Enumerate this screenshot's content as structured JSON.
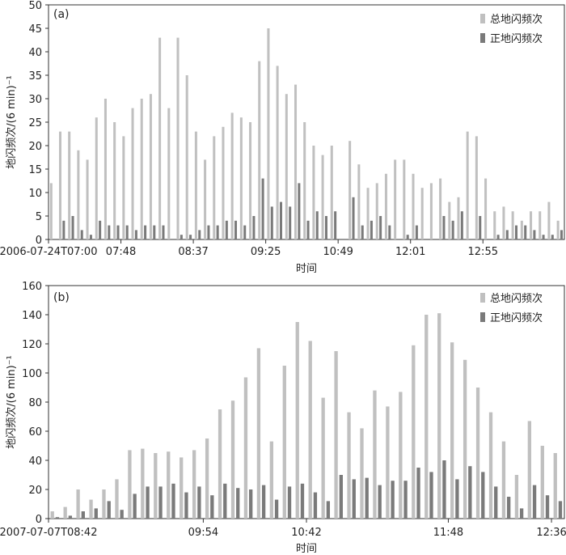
{
  "chart_data": [
    {
      "type": "bar",
      "panel": "(a)",
      "xlabel": "时间",
      "ylabel": "地闪频次/(6 min)⁻¹",
      "ylim": [
        0,
        50
      ],
      "yticks": [
        0,
        5,
        10,
        15,
        20,
        25,
        30,
        35,
        40,
        45,
        50
      ],
      "xtick_labels": [
        {
          "index": 0,
          "label": "2006-07-24T07:00"
        },
        {
          "index": 8,
          "label": "07:48"
        },
        {
          "index": 16,
          "label": "08:37"
        },
        {
          "index": 24,
          "label": "09:25"
        },
        {
          "index": 32,
          "label": "10:49"
        },
        {
          "index": 40,
          "label": "12:01"
        },
        {
          "index": 48,
          "label": "12:55"
        }
      ],
      "legend": "top-right",
      "series": [
        {
          "name": "总地闪频次",
          "color": "#c0c0c0",
          "values": [
            12,
            23,
            23,
            19,
            17,
            26,
            30,
            25,
            22,
            28,
            30,
            31,
            43,
            28,
            43,
            35,
            23,
            17,
            22,
            24,
            27,
            26,
            25,
            38,
            45,
            37,
            31,
            33,
            25,
            20,
            18,
            20,
            null,
            21,
            16,
            11,
            12,
            14,
            17,
            17,
            14,
            11,
            12,
            13,
            8,
            9,
            23,
            22,
            13,
            6,
            7,
            6,
            4,
            6,
            6,
            8,
            4
          ]
        },
        {
          "name": "正地闪频次",
          "color": "#7a7a7a",
          "values": [
            0,
            4,
            5,
            2,
            1,
            4,
            3,
            3,
            3,
            2,
            3,
            3,
            3,
            0,
            1,
            1,
            2,
            3,
            3,
            4,
            4,
            3,
            5,
            13,
            7,
            8,
            7,
            12,
            4,
            6,
            5,
            6,
            null,
            9,
            3,
            4,
            5,
            3,
            0,
            1,
            3,
            0,
            0,
            5,
            4,
            6,
            0,
            5,
            0,
            1,
            2,
            3,
            3,
            2,
            1,
            1,
            2
          ]
        }
      ]
    },
    {
      "type": "bar",
      "panel": "(b)",
      "xlabel": "时间",
      "ylabel": "地闪频次/(6 min)⁻¹",
      "ylim": [
        0,
        160
      ],
      "yticks": [
        0,
        20,
        40,
        60,
        80,
        100,
        120,
        140,
        160
      ],
      "xtick_labels": [
        {
          "index": 0,
          "label": "2007-07-07T08:42"
        },
        {
          "index": 12,
          "label": "09:54"
        },
        {
          "index": 20,
          "label": "10:42"
        },
        {
          "index": 31,
          "label": "11:48"
        },
        {
          "index": 39,
          "label": "12:36"
        }
      ],
      "legend": "top-right",
      "series": [
        {
          "name": "总地闪频次",
          "color": "#c0c0c0",
          "values": [
            5,
            8,
            20,
            13,
            20,
            27,
            47,
            48,
            45,
            46,
            42,
            47,
            55,
            75,
            81,
            97,
            117,
            53,
            105,
            135,
            122,
            83,
            115,
            73,
            62,
            88,
            77,
            87,
            119,
            140,
            141,
            121,
            109,
            90,
            73,
            53,
            30,
            67,
            50,
            45
          ]
        },
        {
          "name": "正地闪频次",
          "color": "#7a7a7a",
          "values": [
            1,
            2,
            5,
            7,
            12,
            6,
            17,
            22,
            22,
            24,
            18,
            22,
            16,
            24,
            21,
            20,
            23,
            13,
            22,
            24,
            18,
            12,
            30,
            27,
            28,
            23,
            26,
            26,
            35,
            32,
            40,
            27,
            36,
            32,
            22,
            15,
            7,
            23,
            16,
            12
          ]
        }
      ]
    }
  ]
}
